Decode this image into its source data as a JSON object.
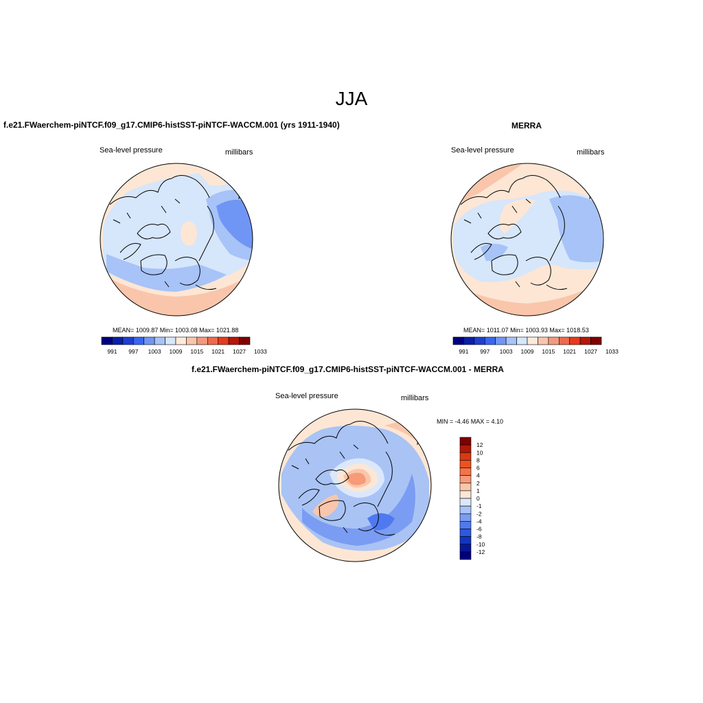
{
  "title": "JJA",
  "panels": [
    {
      "name": "model",
      "title": "f.e21.FWaerchem-piNTCF.f09_g17.CMIP6-histSST-piNTCF-WACCM.001 (yrs 1911-1940)",
      "variable": "Sea-level pressure",
      "units": "millibars",
      "stats": "MEAN= 1009.87  Min= 1003.08  Max= 1021.88"
    },
    {
      "name": "obs",
      "title": "MERRA",
      "variable": "Sea-level pressure",
      "units": "millibars",
      "stats": "MEAN= 1011.07  Min= 1003.93  Max= 1018.53"
    },
    {
      "name": "diff",
      "title": "f.e21.FWaerchem-piNTCF.f09_g17.CMIP6-histSST-piNTCF-WACCM.001 - MERRA",
      "variable": "Sea-level pressure",
      "units": "millibars",
      "stats": "MIN =  -4.46 MAX =   4.10"
    }
  ],
  "colorbar_abs": {
    "colors": [
      "#00007f",
      "#0a1fa8",
      "#1f3fd1",
      "#3a66f0",
      "#6f96f5",
      "#a7c3f7",
      "#d6e6fb",
      "#fdeadb",
      "#f9c6ab",
      "#f39a7c",
      "#ee6a4e",
      "#e63a1d",
      "#b8160a",
      "#7f0000"
    ],
    "labels": [
      "991",
      "997",
      "1003",
      "1009",
      "1015",
      "1021",
      "1027",
      "1033"
    ]
  },
  "colorbar_diff": {
    "colors": [
      "#7f0000",
      "#b01808",
      "#d83a12",
      "#f0521f",
      "#f6734a",
      "#f79a78",
      "#f9c6ab",
      "#fde6d4",
      "#dbe8fb",
      "#a9c3f5",
      "#7a9cf2",
      "#4f79ef",
      "#2d58e0",
      "#1235c0",
      "#07179a",
      "#00007f"
    ],
    "labels": [
      "12",
      "10",
      "8",
      "6",
      "4",
      "2",
      "1",
      "0",
      "-1",
      "-2",
      "-4",
      "-6",
      "-8",
      "-10",
      "-12"
    ]
  }
}
